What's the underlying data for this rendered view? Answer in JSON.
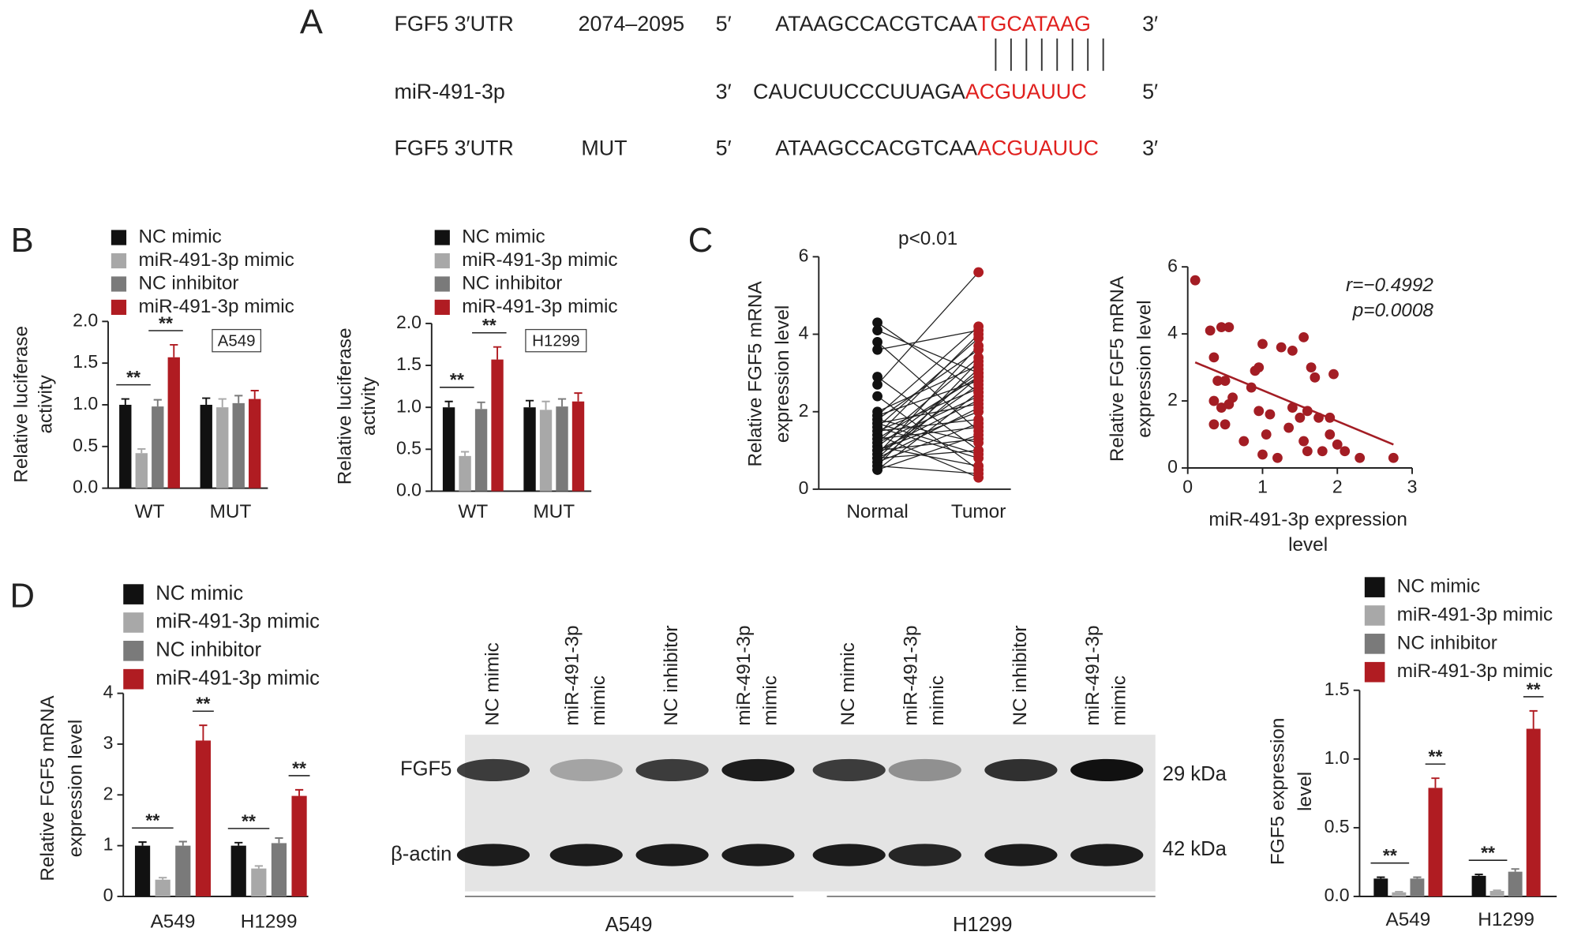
{
  "panel_labels": [
    "A",
    "B",
    "C",
    "D"
  ],
  "sequence": {
    "rows": [
      {
        "name": "FGF5 3′UTR",
        "position": "2074–2095",
        "start": "5′",
        "seq": "ATAAGCCACGTCAA",
        "site": "TGCATAAG",
        "end": "3′"
      },
      {
        "name": "miR-491-3p",
        "start": "3′",
        "seq": "CAUCUUCCCUUAGA",
        "site": "ACGUAUUC",
        "end": "5′"
      },
      {
        "name": "FGF5 3′UTR",
        "position": "MUT",
        "start": "5′",
        "seq": "ATAAGCCACGTCAA",
        "site": "ACGUAUUC",
        "end": "3′"
      }
    ]
  },
  "blot": {
    "lanes": [
      [
        "NC mimic"
      ],
      [
        "miR-491-3p",
        "mimic"
      ],
      [
        "NC inhibitor"
      ],
      [
        "miR-491-3p",
        "mimic"
      ],
      [
        "NC mimic"
      ],
      [
        "miR-491-3p",
        "mimic"
      ],
      [
        "NC inhibitor"
      ],
      [
        "miR-491-3p",
        "mimic"
      ]
    ],
    "rows": [
      {
        "label": "FGF5",
        "size": "29 kDa"
      },
      {
        "label": "β-actin",
        "size": "42 kDa"
      }
    ],
    "groups": [
      "A549",
      "H1299"
    ]
  },
  "chart_data": [
    {
      "type": "bar",
      "categories": [
        "WT",
        "MUT"
      ],
      "y_label": [
        "Relative luciferase",
        "activity"
      ],
      "annotation_box": "A549",
      "ylim": [
        0,
        2
      ],
      "yticks": [
        {
          "value": 0,
          "label": "0.0"
        },
        {
          "value": 0.5,
          "label": "0.5"
        },
        {
          "value": 1,
          "label": "1.0"
        },
        {
          "value": 1.5,
          "label": "1.5"
        },
        {
          "value": 2,
          "label": "2.0"
        }
      ],
      "series": [
        {
          "name": "NC mimic",
          "color": "#111111",
          "values": [
            1.0,
            1.0
          ],
          "errors": [
            0.07,
            0.08
          ]
        },
        {
          "name": "miR-491-3p mimic",
          "color": "#a8a8a8",
          "values": [
            0.42,
            0.97
          ],
          "errors": [
            0.05,
            0.1
          ]
        },
        {
          "name": "NC inhibitor",
          "color": "#7a7a7a",
          "values": [
            0.98,
            1.02
          ],
          "errors": [
            0.08,
            0.09
          ]
        },
        {
          "name": "miR-491-3p mimic",
          "color": "#b01c22",
          "values": [
            1.57,
            1.07
          ],
          "errors": [
            0.15,
            0.1
          ]
        }
      ],
      "significance": [
        {
          "label": "**",
          "category": 0,
          "series": [
            0,
            1
          ]
        },
        {
          "label": "**",
          "category": 0,
          "series": [
            2,
            3
          ]
        }
      ]
    },
    {
      "type": "bar",
      "categories": [
        "WT",
        "MUT"
      ],
      "y_label": [
        "Relative luciferase",
        "activity"
      ],
      "annotation_box": "H1299",
      "ylim": [
        0,
        2
      ],
      "yticks": [
        {
          "value": 0,
          "label": "0.0"
        },
        {
          "value": 0.5,
          "label": "0.5"
        },
        {
          "value": 1,
          "label": "1.0"
        },
        {
          "value": 1.5,
          "label": "1.5"
        },
        {
          "value": 2,
          "label": "2.0"
        }
      ],
      "series": [
        {
          "name": "NC mimic",
          "color": "#111111",
          "values": [
            1.0,
            1.0
          ],
          "errors": [
            0.07,
            0.08
          ]
        },
        {
          "name": "miR-491-3p mimic",
          "color": "#a8a8a8",
          "values": [
            0.42,
            0.97
          ],
          "errors": [
            0.05,
            0.1
          ]
        },
        {
          "name": "NC inhibitor",
          "color": "#7a7a7a",
          "values": [
            0.98,
            1.01
          ],
          "errors": [
            0.08,
            0.09
          ]
        },
        {
          "name": "miR-491-3p mimic",
          "color": "#b01c22",
          "values": [
            1.57,
            1.07
          ],
          "errors": [
            0.15,
            0.1
          ]
        }
      ],
      "significance": [
        {
          "label": "**",
          "category": 0,
          "series": [
            0,
            1
          ]
        },
        {
          "label": "**",
          "category": 0,
          "series": [
            2,
            3
          ]
        }
      ]
    },
    {
      "type": "paired",
      "title": "p<0.01",
      "categories": [
        "Normal",
        "Tumor"
      ],
      "colors": [
        "#111111",
        "#b01c22"
      ],
      "y_label": [
        "Relative FGF5 mRNA",
        "expression level"
      ],
      "ylim": [
        0,
        6
      ],
      "yticks": [
        0,
        2,
        4,
        6
      ],
      "pairs": [
        [
          4.3,
          2.5
        ],
        [
          4.1,
          3.0
        ],
        [
          3.8,
          1.5
        ],
        [
          3.6,
          4.1
        ],
        [
          2.9,
          1.0
        ],
        [
          2.7,
          5.6
        ],
        [
          2.4,
          0.5
        ],
        [
          2.0,
          3.2
        ],
        [
          1.9,
          2.8
        ],
        [
          1.8,
          1.2
        ],
        [
          1.8,
          3.6
        ],
        [
          1.7,
          2.2
        ],
        [
          1.6,
          0.8
        ],
        [
          1.6,
          3.9
        ],
        [
          1.5,
          2.6
        ],
        [
          1.5,
          1.8
        ],
        [
          1.4,
          4.0
        ],
        [
          1.4,
          0.3
        ],
        [
          1.3,
          2.9
        ],
        [
          1.3,
          1.6
        ],
        [
          1.2,
          3.4
        ],
        [
          1.2,
          2.4
        ],
        [
          1.1,
          0.6
        ],
        [
          1.1,
          3.0
        ],
        [
          1.0,
          2.0
        ],
        [
          1.0,
          1.3
        ],
        [
          0.9,
          2.7
        ],
        [
          0.9,
          3.7
        ],
        [
          0.8,
          1.0
        ],
        [
          0.8,
          2.1
        ],
        [
          0.7,
          2.9
        ],
        [
          0.7,
          1.7
        ],
        [
          0.6,
          3.3
        ],
        [
          0.6,
          0.4
        ],
        [
          0.5,
          2.5
        ],
        [
          0.5,
          1.4
        ],
        [
          1.9,
          4.2
        ],
        [
          1.7,
          0.9
        ],
        [
          1.0,
          2.3
        ],
        [
          0.8,
          3.1
        ]
      ]
    },
    {
      "type": "scatter",
      "x_label": [
        "miR-491-3p expression",
        "level"
      ],
      "y_label": [
        "Relative FGF5 mRNA",
        "expression level"
      ],
      "annotations": [
        "r=−0.4992",
        "p=0.0008"
      ],
      "color": "#a31d24",
      "xlim": [
        0,
        3
      ],
      "xticks": [
        0,
        1,
        2,
        3
      ],
      "ylim": [
        0,
        6
      ],
      "yticks": [
        0,
        2,
        4,
        6
      ],
      "x": [
        0.1,
        0.3,
        0.45,
        0.55,
        0.35,
        0.4,
        0.5,
        0.35,
        0.45,
        0.55,
        0.35,
        0.5,
        0.6,
        0.85,
        0.9,
        0.95,
        1.0,
        1.25,
        1.4,
        1.55,
        1.65,
        1.7,
        1.95,
        0.95,
        1.05,
        1.1,
        1.0,
        1.2,
        1.4,
        1.5,
        1.6,
        1.75,
        1.35,
        1.55,
        1.6,
        1.8,
        1.9,
        2.0,
        2.1,
        2.3,
        2.75,
        1.9,
        0.75
      ],
      "y": [
        5.6,
        4.1,
        4.2,
        4.2,
        3.3,
        2.6,
        2.6,
        2.0,
        1.8,
        1.9,
        1.3,
        1.3,
        2.1,
        2.4,
        2.9,
        3.0,
        3.7,
        3.6,
        3.5,
        3.9,
        3.0,
        2.7,
        2.8,
        1.7,
        1.0,
        1.6,
        0.4,
        0.3,
        1.8,
        1.5,
        1.7,
        1.5,
        1.2,
        0.8,
        0.5,
        0.5,
        1.0,
        0.7,
        0.5,
        0.3,
        0.3,
        1.5,
        0.8
      ],
      "trendline": {
        "x": [
          0.1,
          2.75
        ],
        "y": [
          3.15,
          0.7
        ]
      }
    },
    {
      "type": "bar",
      "categories": [
        "A549",
        "H1299"
      ],
      "y_label": [
        "Relative FGF5 mRNA",
        "expression level"
      ],
      "ylim": [
        0,
        4
      ],
      "yticks": [
        0,
        1,
        2,
        3,
        4
      ],
      "series": [
        {
          "name": "NC mimic",
          "color": "#111111",
          "values": [
            1.0,
            1.0
          ],
          "errors": [
            0.07,
            0.06
          ]
        },
        {
          "name": "miR-491-3p mimic",
          "color": "#a8a8a8",
          "values": [
            0.33,
            0.55
          ],
          "errors": [
            0.04,
            0.05
          ]
        },
        {
          "name": "NC inhibitor",
          "color": "#7a7a7a",
          "values": [
            1.0,
            1.05
          ],
          "errors": [
            0.08,
            0.1
          ]
        },
        {
          "name": "miR-491-3p mimic",
          "color": "#b01c22",
          "values": [
            3.07,
            1.98
          ],
          "errors": [
            0.3,
            0.12
          ]
        }
      ],
      "significance": [
        {
          "label": "**",
          "category": 0,
          "series": [
            0,
            1
          ]
        },
        {
          "label": "**",
          "category": 0,
          "series": [
            3,
            3
          ]
        },
        {
          "label": "**",
          "category": 1,
          "series": [
            0,
            1
          ]
        },
        {
          "label": "**",
          "category": 1,
          "series": [
            3,
            3
          ]
        }
      ]
    },
    {
      "type": "bar",
      "categories": [
        "A549",
        "H1299"
      ],
      "y_label": [
        "FGF5 expression",
        "level"
      ],
      "ylim": [
        0,
        1.5
      ],
      "yticks": [
        {
          "value": 0,
          "label": "0.0"
        },
        {
          "value": 0.5,
          "label": "0.5"
        },
        {
          "value": 1,
          "label": "1.0"
        },
        {
          "value": 1.5,
          "label": "1.5"
        }
      ],
      "series": [
        {
          "name": "NC mimic",
          "color": "#111111",
          "values": [
            0.13,
            0.15
          ],
          "errors": [
            0.01,
            0.01
          ]
        },
        {
          "name": "miR-491-3p mimic",
          "color": "#a8a8a8",
          "values": [
            0.03,
            0.04
          ],
          "errors": [
            0.005,
            0.005
          ]
        },
        {
          "name": "NC inhibitor",
          "color": "#7a7a7a",
          "values": [
            0.13,
            0.18
          ],
          "errors": [
            0.01,
            0.02
          ]
        },
        {
          "name": "miR-491-3p mimic",
          "color": "#b01c22",
          "values": [
            0.79,
            1.22
          ],
          "errors": [
            0.07,
            0.13
          ]
        }
      ],
      "significance": [
        {
          "label": "**",
          "category": 0,
          "series": [
            0,
            1
          ]
        },
        {
          "label": "**",
          "category": 0,
          "series": [
            3,
            3
          ]
        },
        {
          "label": "**",
          "category": 1,
          "series": [
            0,
            1
          ]
        },
        {
          "label": "**",
          "category": 1,
          "series": [
            3,
            3
          ]
        }
      ]
    }
  ]
}
